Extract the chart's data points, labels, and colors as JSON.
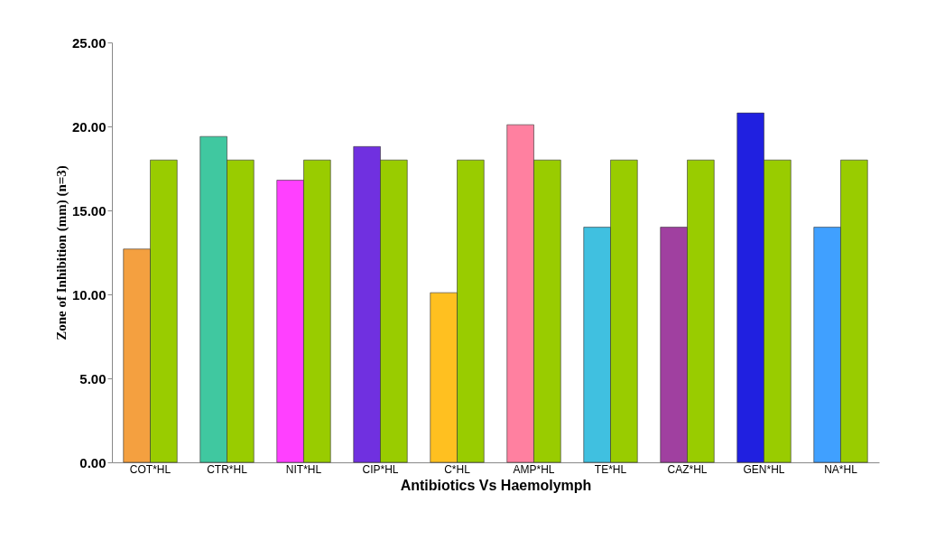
{
  "chart_data": {
    "type": "bar",
    "xlabel": "Antibiotics Vs Haemolymph",
    "ylabel": "Zone of Inhibition (mm) (n=3)",
    "categories": [
      "COT*HL",
      "CTR*HL",
      "NIT*HL",
      "CIP*HL",
      "C*HL",
      "AMP*HL",
      "TE*HL",
      "CAZ*HL",
      "GEN*HL",
      "NA*HL"
    ],
    "series": [
      {
        "colors": [
          "#f4a040",
          "#40c8a0",
          "#ff40ff",
          "#7030e0",
          "#ffc020",
          "#ff80a0",
          "#40c0e0",
          "#a040a0",
          "#2020e0",
          "#40a0ff"
        ],
        "values": [
          12.7,
          19.4,
          16.8,
          18.8,
          10.1,
          20.1,
          14.0,
          14.0,
          20.8,
          14.0
        ]
      },
      {
        "color": "#99cc00",
        "values": [
          18.0,
          18.0,
          18.0,
          18.0,
          18.0,
          18.0,
          18.0,
          18.0,
          18.0,
          18.0
        ]
      }
    ],
    "ylim": [
      0,
      25
    ],
    "yticks": [
      {
        "value": 0,
        "label": "0.00"
      },
      {
        "value": 5,
        "label": "5.00"
      },
      {
        "value": 10,
        "label": "10.00"
      },
      {
        "value": 15,
        "label": "15.00"
      },
      {
        "value": 20,
        "label": "20.00"
      },
      {
        "value": 25,
        "label": "25.00"
      }
    ],
    "grid": false
  }
}
